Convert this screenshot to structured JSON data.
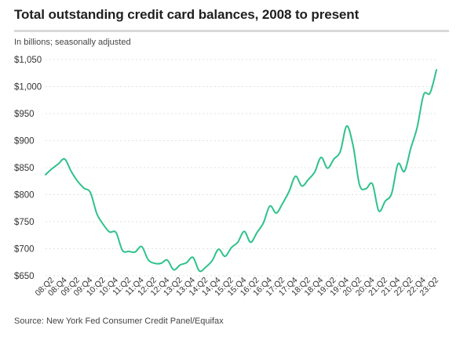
{
  "chart_data": {
    "type": "line",
    "title": "Total outstanding credit card balances, 2008 to present",
    "subtitle": "In billions; seasonally adjusted",
    "source": "Source: New York Fed Consumer Credit Panel/Equifax",
    "ylim": [
      650,
      1050
    ],
    "yticks": [
      650,
      700,
      750,
      800,
      850,
      900,
      950,
      1000,
      1050
    ],
    "ytick_labels": [
      "$650",
      "$700",
      "$750",
      "$800",
      "$850",
      "$900",
      "$950",
      "$1,000",
      "$1,050"
    ],
    "grid": true,
    "x": [
      "08:Q1",
      "08:Q2",
      "08:Q3",
      "08:Q4",
      "09:Q1",
      "09:Q2",
      "09:Q3",
      "09:Q4",
      "10:Q1",
      "10:Q2",
      "10:Q3",
      "10:Q4",
      "11:Q1",
      "11:Q2",
      "11:Q3",
      "11:Q4",
      "12:Q1",
      "12:Q2",
      "12:Q3",
      "12:Q4",
      "13:Q1",
      "13:Q2",
      "13:Q3",
      "13:Q4",
      "14:Q1",
      "14:Q2",
      "14:Q3",
      "14:Q4",
      "15:Q1",
      "15:Q2",
      "15:Q3",
      "15:Q4",
      "16:Q1",
      "16:Q2",
      "16:Q3",
      "16:Q4",
      "17:Q1",
      "17:Q2",
      "17:Q3",
      "17:Q4",
      "18:Q1",
      "18:Q2",
      "18:Q3",
      "18:Q4",
      "19:Q1",
      "19:Q2",
      "19:Q3",
      "19:Q4",
      "20:Q1",
      "20:Q2",
      "20:Q3",
      "20:Q4",
      "21:Q1",
      "21:Q2",
      "21:Q3",
      "21:Q4",
      "22:Q1",
      "22:Q2",
      "22:Q3",
      "22:Q4",
      "23:Q1",
      "23:Q2"
    ],
    "xtick_labels": [
      "08:Q2",
      "08:Q4",
      "09:Q2",
      "09:Q4",
      "10:Q2",
      "10:Q4",
      "11:Q2",
      "11:Q4",
      "12:Q2",
      "12:Q4",
      "13:Q2",
      "13:Q4",
      "14:Q2",
      "14:Q4",
      "15:Q2",
      "15:Q4",
      "16:Q2",
      "16:Q4",
      "17:Q2",
      "17:Q4",
      "18:Q2",
      "18:Q4",
      "19:Q2",
      "19:Q4",
      "20:Q2",
      "20:Q4",
      "21:Q2",
      "21:Q4",
      "22:Q2",
      "22:Q4",
      "23:Q2"
    ],
    "series": [
      {
        "color": "#2ec28a",
        "values": [
          837,
          848,
          857,
          866,
          843,
          825,
          812,
          804,
          765,
          745,
          731,
          730,
          697,
          695,
          694,
          704,
          680,
          673,
          673,
          679,
          661,
          670,
          674,
          684,
          659,
          666,
          678,
          699,
          686,
          702,
          712,
          732,
          712,
          730,
          748,
          779,
          766,
          784,
          806,
          834,
          816,
          828,
          842,
          869,
          849,
          866,
          880,
          927,
          890,
          818,
          811,
          820,
          770,
          788,
          802,
          857,
          843,
          886,
          925,
          985,
          988,
          1031
        ]
      }
    ]
  }
}
